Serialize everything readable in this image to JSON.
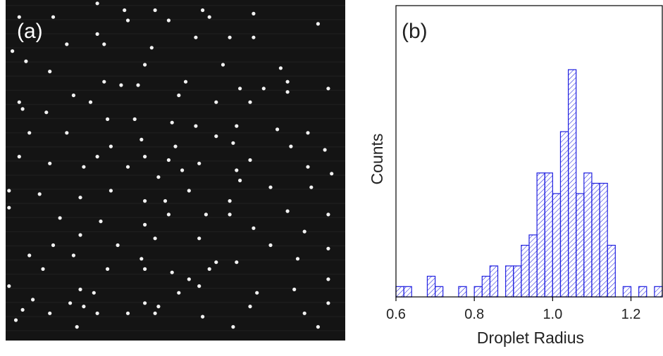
{
  "panel_a": {
    "label": "(a)",
    "colors": {
      "background": "#141414",
      "particle": "#f2f2f2",
      "label": "#ffffff"
    },
    "particles": [
      [
        0.27,
        0.01
      ],
      [
        0.35,
        0.03
      ],
      [
        0.44,
        0.03
      ],
      [
        0.58,
        0.03
      ],
      [
        0.04,
        0.05
      ],
      [
        0.14,
        0.05
      ],
      [
        0.36,
        0.06
      ],
      [
        0.48,
        0.06
      ],
      [
        0.6,
        0.05
      ],
      [
        0.73,
        0.04
      ],
      [
        0.92,
        0.07
      ],
      [
        0.27,
        0.1
      ],
      [
        0.56,
        0.11
      ],
      [
        0.66,
        0.11
      ],
      [
        0.73,
        0.11
      ],
      [
        0.18,
        0.13
      ],
      [
        0.29,
        0.13
      ],
      [
        0.43,
        0.14
      ],
      [
        0.02,
        0.15
      ],
      [
        0.06,
        0.18
      ],
      [
        0.41,
        0.19
      ],
      [
        0.64,
        0.19
      ],
      [
        0.81,
        0.2
      ],
      [
        0.13,
        0.21
      ],
      [
        0.53,
        0.24
      ],
      [
        0.83,
        0.24
      ],
      [
        0.29,
        0.24
      ],
      [
        0.34,
        0.25
      ],
      [
        0.39,
        0.25
      ],
      [
        0.69,
        0.26
      ],
      [
        0.76,
        0.26
      ],
      [
        0.95,
        0.26
      ],
      [
        0.2,
        0.28
      ],
      [
        0.51,
        0.28
      ],
      [
        0.83,
        0.27
      ],
      [
        0.04,
        0.3
      ],
      [
        0.25,
        0.3
      ],
      [
        0.62,
        0.3
      ],
      [
        0.72,
        0.3
      ],
      [
        0.05,
        0.32
      ],
      [
        0.12,
        0.33
      ],
      [
        0.3,
        0.35
      ],
      [
        0.38,
        0.35
      ],
      [
        0.49,
        0.36
      ],
      [
        0.56,
        0.37
      ],
      [
        0.68,
        0.37
      ],
      [
        0.8,
        0.38
      ],
      [
        0.89,
        0.39
      ],
      [
        0.07,
        0.39
      ],
      [
        0.18,
        0.39
      ],
      [
        0.4,
        0.41
      ],
      [
        0.62,
        0.4
      ],
      [
        0.67,
        0.42
      ],
      [
        0.31,
        0.43
      ],
      [
        0.5,
        0.43
      ],
      [
        0.84,
        0.43
      ],
      [
        0.94,
        0.44
      ],
      [
        0.04,
        0.46
      ],
      [
        0.27,
        0.46
      ],
      [
        0.41,
        0.46
      ],
      [
        0.48,
        0.47
      ],
      [
        0.57,
        0.48
      ],
      [
        0.72,
        0.47
      ],
      [
        0.13,
        0.48
      ],
      [
        0.23,
        0.49
      ],
      [
        0.36,
        0.49
      ],
      [
        0.52,
        0.5
      ],
      [
        0.68,
        0.5
      ],
      [
        0.89,
        0.49
      ],
      [
        0.45,
        0.52
      ],
      [
        0.69,
        0.53
      ],
      [
        0.96,
        0.51
      ],
      [
        0.01,
        0.56
      ],
      [
        0.31,
        0.56
      ],
      [
        0.54,
        0.56
      ],
      [
        0.78,
        0.55
      ],
      [
        0.9,
        0.55
      ],
      [
        0.1,
        0.57
      ],
      [
        0.22,
        0.58
      ],
      [
        0.41,
        0.59
      ],
      [
        0.47,
        0.59
      ],
      [
        0.66,
        0.59
      ],
      [
        0.01,
        0.61
      ],
      [
        0.48,
        0.63
      ],
      [
        0.59,
        0.63
      ],
      [
        0.66,
        0.63
      ],
      [
        0.83,
        0.62
      ],
      [
        0.95,
        0.63
      ],
      [
        0.16,
        0.64
      ],
      [
        0.28,
        0.65
      ],
      [
        0.41,
        0.66
      ],
      [
        0.73,
        0.67
      ],
      [
        0.88,
        0.68
      ],
      [
        0.22,
        0.69
      ],
      [
        0.44,
        0.7
      ],
      [
        0.57,
        0.7
      ],
      [
        0.14,
        0.72
      ],
      [
        0.33,
        0.72
      ],
      [
        0.78,
        0.72
      ],
      [
        0.95,
        0.73
      ],
      [
        0.07,
        0.75
      ],
      [
        0.2,
        0.75
      ],
      [
        0.4,
        0.76
      ],
      [
        0.62,
        0.77
      ],
      [
        0.68,
        0.77
      ],
      [
        0.86,
        0.76
      ],
      [
        0.11,
        0.79
      ],
      [
        0.3,
        0.79
      ],
      [
        0.41,
        0.79
      ],
      [
        0.49,
        0.8
      ],
      [
        0.6,
        0.79
      ],
      [
        0.54,
        0.82
      ],
      [
        0.57,
        0.84
      ],
      [
        0.95,
        0.82
      ],
      [
        0.01,
        0.84
      ],
      [
        0.22,
        0.85
      ],
      [
        0.26,
        0.86
      ],
      [
        0.51,
        0.86
      ],
      [
        0.74,
        0.86
      ],
      [
        0.85,
        0.85
      ],
      [
        0.08,
        0.88
      ],
      [
        0.41,
        0.89
      ],
      [
        0.45,
        0.9
      ],
      [
        0.19,
        0.89
      ],
      [
        0.23,
        0.9
      ],
      [
        0.27,
        0.92
      ],
      [
        0.72,
        0.9
      ],
      [
        0.95,
        0.89
      ],
      [
        0.13,
        0.92
      ],
      [
        0.36,
        0.92
      ],
      [
        0.44,
        0.92
      ],
      [
        0.03,
        0.94
      ],
      [
        0.58,
        0.93
      ],
      [
        0.88,
        0.92
      ],
      [
        0.21,
        0.96
      ],
      [
        0.67,
        0.96
      ],
      [
        0.92,
        0.96
      ],
      [
        0.05,
        0.91
      ]
    ]
  },
  "chart_data": {
    "type": "bar",
    "label": "(b)",
    "xlabel": "Droplet Radius",
    "ylabel": "Counts",
    "xlim": [
      0.6,
      1.28
    ],
    "ylim": [
      0,
      28.2
    ],
    "x_ticks": [
      "0.6",
      "0.8",
      "1.0",
      "1.2"
    ],
    "y_ticks": [],
    "bin_width": 0.02,
    "bin_starts": [
      0.6,
      0.62,
      0.64,
      0.66,
      0.68,
      0.7,
      0.72,
      0.74,
      0.76,
      0.78,
      0.8,
      0.82,
      0.84,
      0.86,
      0.88,
      0.9,
      0.92,
      0.94,
      0.96,
      0.98,
      1.0,
      1.02,
      1.04,
      1.06,
      1.08,
      1.1,
      1.12,
      1.14,
      1.16,
      1.18,
      1.2,
      1.22,
      1.24,
      1.26
    ],
    "values": [
      1,
      1,
      0,
      0,
      2,
      1,
      0,
      0,
      1,
      0,
      1,
      2,
      3,
      0,
      3,
      3,
      5,
      6,
      12,
      12,
      10,
      16,
      22,
      10,
      12,
      11,
      11,
      5,
      0,
      1,
      0,
      1,
      0,
      1
    ],
    "colors": {
      "bar": "#1f1fe0",
      "axis": "#000000",
      "text": "#222222"
    },
    "grid": false,
    "legend": "none"
  }
}
